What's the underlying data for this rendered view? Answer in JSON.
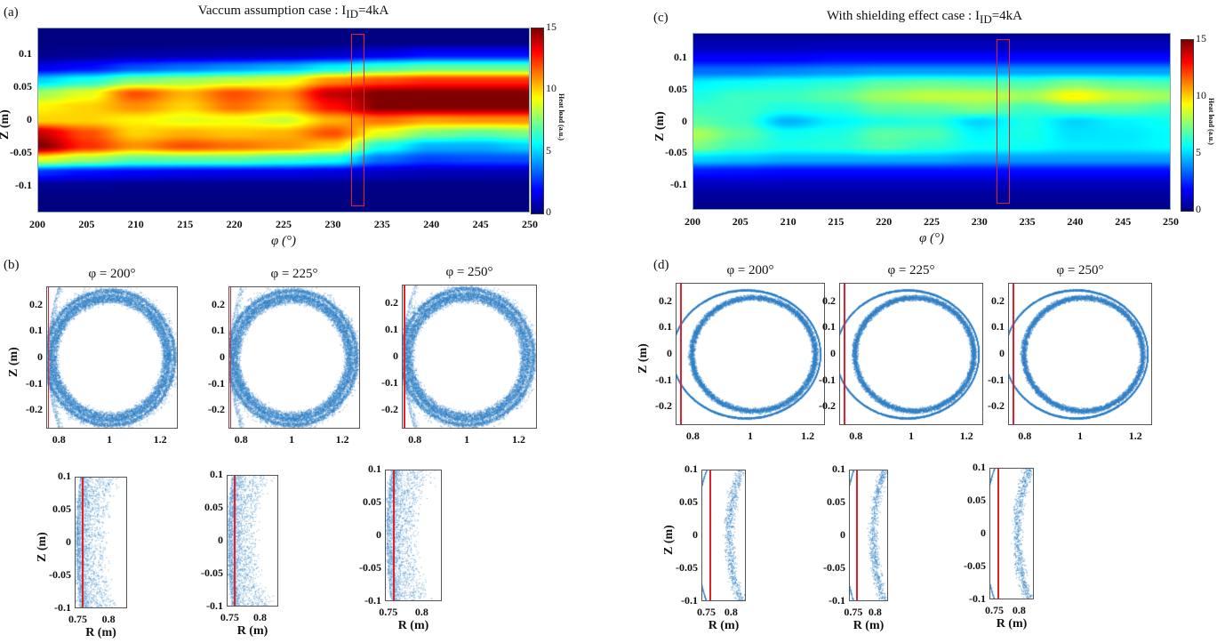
{
  "figure": {
    "panels": {
      "a": {
        "letter": "(a)",
        "title_prefix": "Vaccum assumption case : I",
        "title_sub": "ID",
        "title_suffix": "=4kA"
      },
      "b": {
        "letter": "(b)"
      },
      "c": {
        "letter": "(c)",
        "title_prefix": "With shielding effect case : I",
        "title_sub": "ID",
        "title_suffix": "=4kA"
      },
      "d": {
        "letter": "(d)"
      }
    },
    "colors": {
      "scatter": "#2f7fc4",
      "marker_line": "#e0202a",
      "frame": "#555555"
    }
  },
  "chart_data": [
    {
      "id": "a",
      "type": "heatmap",
      "title": "Vaccum assumption case : I_ID=4kA",
      "xlabel": "φ (°)",
      "ylabel": "Z (m)",
      "xlim": [
        200,
        250
      ],
      "ylim": [
        -0.14,
        0.14
      ],
      "xticks": [
        "200",
        "205",
        "210",
        "215",
        "220",
        "225",
        "230",
        "235",
        "240",
        "245",
        "250"
      ],
      "yticks": [
        "0.1",
        "0.05",
        "0",
        "-0.05",
        "-0.1"
      ],
      "colorbar": {
        "label": "Heat load (a.u.)",
        "range": [
          0,
          15
        ],
        "ticks": [
          "15",
          "10",
          "5",
          "0"
        ],
        "colormap": "jet"
      },
      "highlight_phi": [
        232,
        233
      ],
      "highlight_z": [
        -0.13,
        0.13
      ],
      "grid_x": [
        200,
        205,
        210,
        215,
        220,
        225,
        230,
        235,
        240,
        245,
        250
      ],
      "grid_z": [
        0.14,
        0.12,
        0.1,
        0.08,
        0.06,
        0.04,
        0.02,
        0.0,
        -0.02,
        -0.04,
        -0.06,
        -0.08,
        -0.1,
        -0.12,
        -0.14
      ],
      "values": [
        [
          0,
          0,
          0,
          0,
          0,
          0,
          0,
          0,
          0,
          0,
          0
        ],
        [
          0,
          0,
          0,
          0,
          0,
          0,
          0,
          0,
          0,
          0,
          0
        ],
        [
          0.2,
          0.3,
          0.5,
          0.6,
          0.7,
          0.8,
          1,
          1.5,
          2,
          2,
          2
        ],
        [
          1.5,
          2,
          3,
          3.5,
          4,
          4.5,
          5.5,
          6.5,
          7,
          7,
          7
        ],
        [
          5,
          6,
          7.5,
          8,
          8.5,
          9,
          11,
          12,
          12.5,
          12.5,
          12.5
        ],
        [
          8,
          9,
          12,
          10.5,
          12,
          11,
          14,
          15,
          15,
          15,
          15
        ],
        [
          9.5,
          10,
          11,
          10,
          11.5,
          10.5,
          13,
          15,
          15,
          15,
          15
        ],
        [
          10,
          10,
          9.5,
          9,
          9.2,
          8.6,
          10.5,
          11.5,
          10.8,
          11,
          11
        ],
        [
          14,
          12,
          10,
          10.5,
          10.2,
          10.5,
          12,
          9,
          7.5,
          7,
          7.5
        ],
        [
          15,
          12.5,
          11,
          12,
          11.5,
          11,
          10,
          6,
          4.5,
          4.5,
          5
        ],
        [
          9,
          8,
          7,
          7,
          7,
          6.5,
          6,
          3.5,
          2.8,
          3,
          3
        ],
        [
          2.5,
          2,
          1.8,
          1.6,
          1.5,
          1.5,
          1.3,
          1,
          0.8,
          0.8,
          0.8
        ],
        [
          0.3,
          0.3,
          0.2,
          0.2,
          0.2,
          0.2,
          0.2,
          0.1,
          0.1,
          0.1,
          0.1
        ],
        [
          0,
          0,
          0,
          0,
          0,
          0,
          0,
          0,
          0,
          0,
          0
        ],
        [
          0,
          0,
          0,
          0,
          0,
          0,
          0,
          0,
          0,
          0,
          0
        ]
      ]
    },
    {
      "id": "c",
      "type": "heatmap",
      "title": "With shielding effect case : I_ID=4kA",
      "xlabel": "φ (°)",
      "ylabel": "Z (m)",
      "xlim": [
        200,
        250
      ],
      "ylim": [
        -0.14,
        0.14
      ],
      "xticks": [
        "200",
        "205",
        "210",
        "215",
        "220",
        "225",
        "230",
        "235",
        "240",
        "245",
        "250"
      ],
      "yticks": [
        "0.1",
        "0.05",
        "0",
        "-0.05",
        "-0.1"
      ],
      "colorbar": {
        "label": "Heat load (a.u.)",
        "range": [
          0,
          15
        ],
        "ticks": [
          "15",
          "10",
          "5",
          "0"
        ],
        "colormap": "jet"
      },
      "highlight_phi": [
        232,
        233
      ],
      "highlight_z": [
        -0.13,
        0.13
      ],
      "grid_x": [
        200,
        205,
        210,
        215,
        220,
        225,
        230,
        235,
        240,
        245,
        250
      ],
      "grid_z": [
        0.14,
        0.12,
        0.1,
        0.08,
        0.06,
        0.04,
        0.02,
        0.0,
        -0.02,
        -0.04,
        -0.06,
        -0.08,
        -0.1,
        -0.12,
        -0.14
      ],
      "values": [
        [
          0.3,
          0.3,
          0.3,
          0.3,
          0.3,
          0.3,
          0.3,
          0.3,
          0.3,
          0.3,
          0.3
        ],
        [
          0.8,
          0.8,
          0.8,
          0.9,
          0.9,
          0.9,
          0.9,
          0.9,
          0.9,
          0.9,
          0.9
        ],
        [
          1.8,
          1.8,
          1.8,
          2,
          2,
          2,
          2,
          2,
          2,
          2,
          2
        ],
        [
          3.5,
          3.5,
          3.8,
          4,
          4.2,
          4.2,
          4.2,
          4.2,
          4.2,
          4.2,
          4.2
        ],
        [
          5.5,
          5.8,
          6,
          6.3,
          7,
          7.2,
          7,
          6.8,
          7.5,
          7,
          6.8
        ],
        [
          6,
          6.5,
          6.5,
          7,
          8,
          8.5,
          8.5,
          8,
          9.5,
          8.5,
          8
        ],
        [
          6.5,
          6.5,
          6,
          6.2,
          7,
          7,
          7.5,
          6.5,
          7,
          7,
          6.5
        ],
        [
          7,
          6.5,
          4.5,
          5.5,
          6,
          6.2,
          5,
          6,
          5,
          5.5,
          5.8
        ],
        [
          8.2,
          7,
          5.8,
          6,
          7,
          6.8,
          5.5,
          6,
          5.2,
          5.3,
          5.6
        ],
        [
          7.5,
          6.5,
          6,
          6.2,
          6.8,
          6.3,
          5.8,
          5.8,
          5.4,
          5.4,
          5.6
        ],
        [
          5,
          4.8,
          4.5,
          4.5,
          4.5,
          4.5,
          4.2,
          4.2,
          4.2,
          4.2,
          4.2
        ],
        [
          2.2,
          2.1,
          2,
          2,
          2,
          2,
          2,
          2,
          2,
          2,
          2
        ],
        [
          0.9,
          0.9,
          0.9,
          0.9,
          0.9,
          0.9,
          0.9,
          0.9,
          0.9,
          0.9,
          0.9
        ],
        [
          0.4,
          0.4,
          0.4,
          0.4,
          0.4,
          0.4,
          0.4,
          0.4,
          0.4,
          0.4,
          0.4
        ],
        [
          0.2,
          0.2,
          0.2,
          0.2,
          0.2,
          0.2,
          0.2,
          0.2,
          0.2,
          0.2,
          0.2
        ]
      ]
    },
    {
      "id": "b-200",
      "type": "scatter",
      "group": "b",
      "title": "φ = 200°",
      "xlim": [
        0.75,
        1.27
      ],
      "ylim": [
        -0.27,
        0.27
      ],
      "xticks": [
        "0.8",
        "1",
        "1.2"
      ],
      "yticks": [
        "0.2",
        "0.1",
        "0",
        "-0.1",
        "-0.2"
      ],
      "ylabel": "Z (m)",
      "wall_R": 0.757,
      "rings": [
        {
          "R0": 1.0,
          "a": 0.22,
          "width": 0.03
        },
        {
          "R0": 1.0,
          "a": 0.235,
          "width": 0.02
        },
        {
          "R0": 1.0,
          "a": 0.255,
          "width": 0.015
        }
      ],
      "chaotic": true
    },
    {
      "id": "b-225",
      "type": "scatter",
      "group": "b",
      "title": "φ = 225°",
      "xlim": [
        0.75,
        1.27
      ],
      "ylim": [
        -0.27,
        0.27
      ],
      "xticks": [
        "0.8",
        "1",
        "1.2"
      ],
      "yticks": [
        "0.2",
        "0.1",
        "0",
        "-0.1",
        "-0.2"
      ],
      "ylabel": "",
      "wall_R": 0.757,
      "rings": [
        {
          "R0": 1.0,
          "a": 0.22,
          "width": 0.03
        },
        {
          "R0": 1.0,
          "a": 0.235,
          "width": 0.02
        },
        {
          "R0": 1.0,
          "a": 0.255,
          "width": 0.015
        }
      ],
      "chaotic": true
    },
    {
      "id": "b-250",
      "type": "scatter",
      "group": "b",
      "title": "φ = 250°",
      "xlim": [
        0.75,
        1.27
      ],
      "ylim": [
        -0.27,
        0.27
      ],
      "xticks": [
        "0.8",
        "1",
        "1.2"
      ],
      "yticks": [
        "0.2",
        "0.1",
        "0",
        "-0.1",
        "-0.2"
      ],
      "ylabel": "",
      "wall_R": 0.757,
      "rings": [
        {
          "R0": 1.0,
          "a": 0.22,
          "width": 0.03
        },
        {
          "R0": 1.0,
          "a": 0.235,
          "width": 0.02
        },
        {
          "R0": 1.0,
          "a": 0.255,
          "width": 0.015
        }
      ],
      "chaotic": true
    },
    {
      "id": "b-zoom-200",
      "type": "scatter",
      "group": "b",
      "title": "",
      "xlim": [
        0.745,
        0.83
      ],
      "ylim": [
        -0.1,
        0.1
      ],
      "xticks": [
        "0.75",
        "0.8"
      ],
      "yticks": [
        "0.1",
        "0.05",
        "0",
        "-0.05",
        "-0.1"
      ],
      "xlabel": "R (m)",
      "ylabel": "Z (m)",
      "wall_R": 0.757,
      "rings": [
        {
          "R0": 1.0,
          "a": 0.22,
          "width": 0.03
        },
        {
          "R0": 1.0,
          "a": 0.235,
          "width": 0.02
        },
        {
          "R0": 1.0,
          "a": 0.255,
          "width": 0.015
        }
      ],
      "chaotic": true
    },
    {
      "id": "b-zoom-225",
      "type": "scatter",
      "group": "b",
      "title": "",
      "xlim": [
        0.745,
        0.83
      ],
      "ylim": [
        -0.1,
        0.1
      ],
      "xticks": [
        "0.75",
        "0.8"
      ],
      "yticks": [
        "0.1",
        "0.05",
        "0",
        "-0.05",
        "-0.1"
      ],
      "xlabel": "R (m)",
      "ylabel": "",
      "wall_R": 0.757,
      "rings": [
        {
          "R0": 1.0,
          "a": 0.22,
          "width": 0.03
        },
        {
          "R0": 1.0,
          "a": 0.235,
          "width": 0.02
        },
        {
          "R0": 1.0,
          "a": 0.255,
          "width": 0.015
        }
      ],
      "chaotic": true
    },
    {
      "id": "b-zoom-250",
      "type": "scatter",
      "group": "b",
      "title": "",
      "xlim": [
        0.745,
        0.83
      ],
      "ylim": [
        -0.1,
        0.1
      ],
      "xticks": [
        "0.75",
        "0.8"
      ],
      "yticks": [
        "0.1",
        "0.05",
        "0",
        "-0.05",
        "-0.1"
      ],
      "xlabel": "R (m)",
      "ylabel": "",
      "wall_R": 0.757,
      "rings": [
        {
          "R0": 1.0,
          "a": 0.22,
          "width": 0.03
        },
        {
          "R0": 1.0,
          "a": 0.235,
          "width": 0.02
        },
        {
          "R0": 1.0,
          "a": 0.255,
          "width": 0.015
        }
      ],
      "chaotic": true
    },
    {
      "id": "d-200",
      "type": "scatter",
      "group": "d",
      "title": "φ = 200°",
      "xlim": [
        0.74,
        1.26
      ],
      "ylim": [
        -0.27,
        0.27
      ],
      "xticks": [
        "0.8",
        "1",
        "1.2"
      ],
      "yticks": [
        "0.2",
        "0.1",
        "0",
        "-0.1",
        "-0.2"
      ],
      "ylabel": "Z (m)",
      "wall_R": 0.757,
      "rings": [
        {
          "R0": 1.01,
          "a": 0.215,
          "width": 0.025
        },
        {
          "R0": 1.0,
          "a": 0.243,
          "width": 0.008
        }
      ],
      "chaotic": false
    },
    {
      "id": "d-225",
      "type": "scatter",
      "group": "d",
      "title": "φ = 225°",
      "xlim": [
        0.74,
        1.26
      ],
      "ylim": [
        -0.27,
        0.27
      ],
      "xticks": [
        "0.8",
        "1",
        "1.2"
      ],
      "yticks": [
        "0.2",
        "0.1",
        "0",
        "-0.1",
        "-0.2"
      ],
      "ylabel": "",
      "wall_R": 0.757,
      "rings": [
        {
          "R0": 1.01,
          "a": 0.215,
          "width": 0.025
        },
        {
          "R0": 1.0,
          "a": 0.243,
          "width": 0.008
        }
      ],
      "chaotic": false
    },
    {
      "id": "d-250",
      "type": "scatter",
      "group": "d",
      "title": "φ = 250°",
      "xlim": [
        0.74,
        1.26
      ],
      "ylim": [
        -0.27,
        0.27
      ],
      "xticks": [
        "0.8",
        "1",
        "1.2"
      ],
      "yticks": [
        "0.2",
        "0.1",
        "0",
        "-0.1",
        "-0.2"
      ],
      "ylabel": "",
      "wall_R": 0.757,
      "rings": [
        {
          "R0": 1.01,
          "a": 0.215,
          "width": 0.025
        },
        {
          "R0": 1.0,
          "a": 0.243,
          "width": 0.008
        }
      ],
      "chaotic": false
    },
    {
      "id": "d-zoom-200",
      "type": "scatter",
      "group": "d",
      "title": "",
      "xlim": [
        0.74,
        0.83
      ],
      "ylim": [
        -0.1,
        0.1
      ],
      "xticks": [
        "0.75",
        "0.8"
      ],
      "yticks": [
        "0.1",
        "0.05",
        "0",
        "-0.05",
        "-0.1"
      ],
      "xlabel": "R (m)",
      "ylabel": "Z (m)",
      "wall_R": 0.757,
      "rings": [
        {
          "R0": 1.01,
          "a": 0.215,
          "width": 0.025
        },
        {
          "R0": 1.0,
          "a": 0.243,
          "width": 0.008
        }
      ],
      "chaotic": false
    },
    {
      "id": "d-zoom-225",
      "type": "scatter",
      "group": "d",
      "title": "",
      "xlim": [
        0.74,
        0.83
      ],
      "ylim": [
        -0.1,
        0.1
      ],
      "xticks": [
        "0.75",
        "0.8"
      ],
      "yticks": [
        "0.1",
        "0.05",
        "0",
        "-0.05",
        "-0.1"
      ],
      "xlabel": "R (m)",
      "ylabel": "",
      "wall_R": 0.757,
      "rings": [
        {
          "R0": 1.01,
          "a": 0.215,
          "width": 0.025
        },
        {
          "R0": 1.0,
          "a": 0.243,
          "width": 0.008
        }
      ],
      "chaotic": false
    },
    {
      "id": "d-zoom-250",
      "type": "scatter",
      "group": "d",
      "title": "",
      "xlim": [
        0.74,
        0.83
      ],
      "ylim": [
        -0.1,
        0.1
      ],
      "xticks": [
        "0.75",
        "0.8"
      ],
      "yticks": [
        "0.1",
        "0.05",
        "0",
        "-0.05",
        "-0.1"
      ],
      "xlabel": "R (m)",
      "ylabel": "",
      "wall_R": 0.757,
      "rings": [
        {
          "R0": 1.01,
          "a": 0.215,
          "width": 0.025
        },
        {
          "R0": 1.0,
          "a": 0.243,
          "width": 0.008
        }
      ],
      "chaotic": false
    }
  ]
}
